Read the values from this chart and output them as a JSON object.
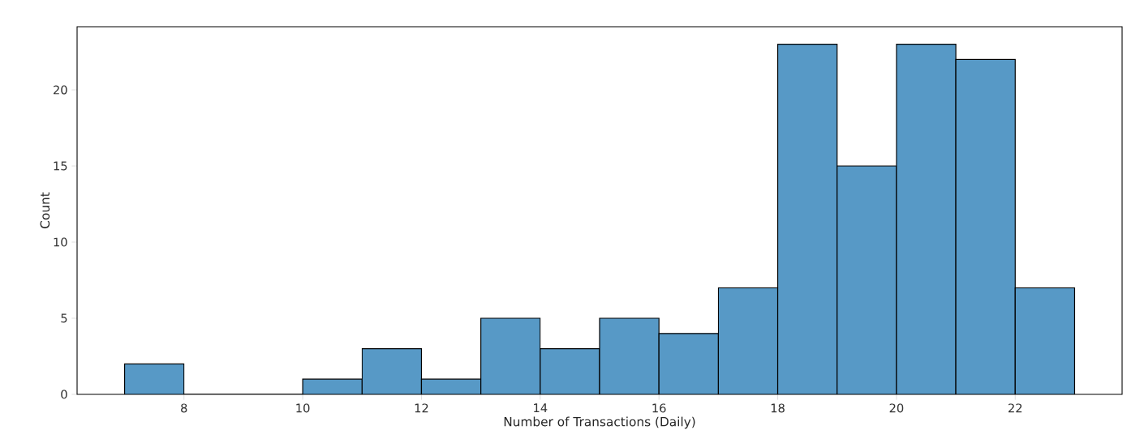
{
  "chart_data": {
    "type": "histogram",
    "xlabel": "Number of Transactions (Daily)",
    "ylabel": "Count",
    "bins": [
      7,
      8,
      9,
      10,
      11,
      12,
      13,
      14,
      15,
      16,
      17,
      18,
      19,
      20,
      21,
      22,
      23
    ],
    "values": [
      2,
      0,
      0,
      1,
      3,
      1,
      5,
      3,
      5,
      4,
      7,
      23,
      15,
      23,
      22,
      7
    ],
    "color": "#5799c6",
    "xlim": [
      6.2,
      23.8
    ],
    "ylim": [
      0,
      24.15
    ],
    "xticks": [
      8,
      10,
      12,
      14,
      16,
      18,
      20,
      22
    ],
    "yticks": [
      0,
      5,
      10,
      15,
      20
    ]
  }
}
